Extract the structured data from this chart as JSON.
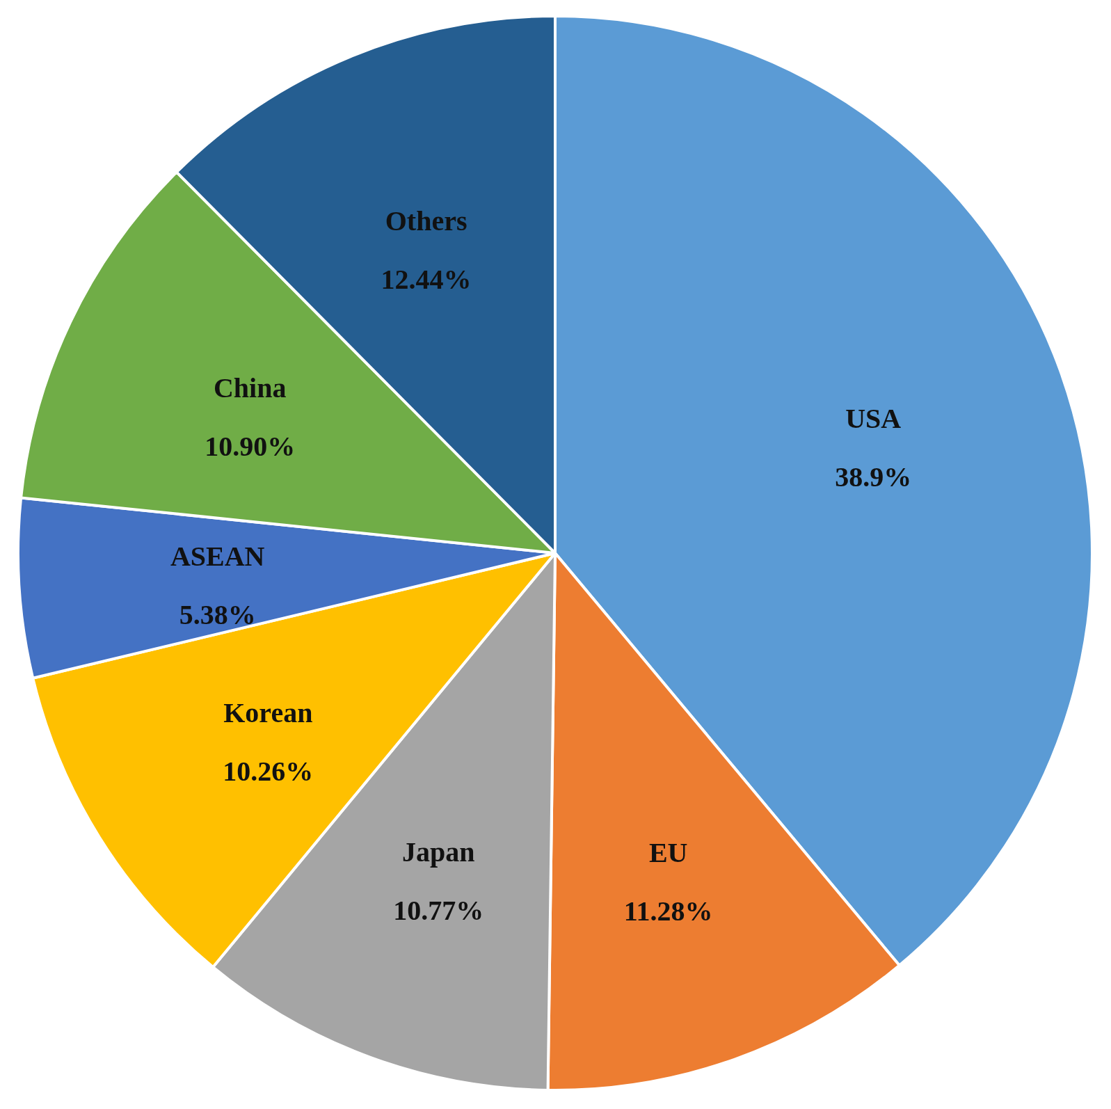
{
  "chart_data": {
    "type": "pie",
    "categories": [
      "USA",
      "EU",
      "Japan",
      "Korean",
      "ASEAN",
      "China",
      "Others"
    ],
    "values": [
      38.9,
      11.28,
      10.77,
      10.26,
      5.38,
      10.9,
      12.44
    ],
    "value_labels": [
      "38.9%",
      "11.28%",
      "10.77%",
      "10.26%",
      "5.38%",
      "10.90%",
      "12.44%"
    ],
    "colors": [
      "#5b9bd5",
      "#ed7d31",
      "#a5a5a5",
      "#ffc000",
      "#4472c4",
      "#70ad47",
      "#255e91"
    ]
  }
}
